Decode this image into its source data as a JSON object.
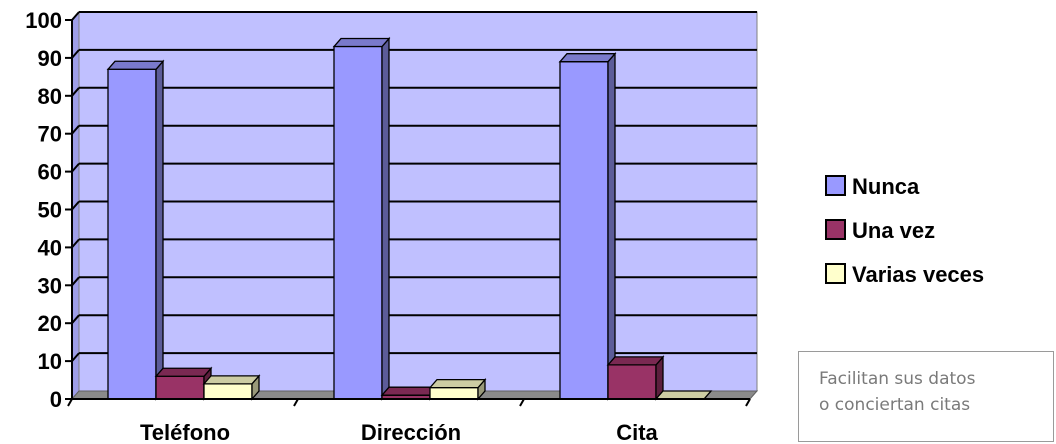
{
  "chart_data": {
    "type": "bar",
    "categories": [
      "Teléfono",
      "Dirección",
      "Cita"
    ],
    "series": [
      {
        "name": "Nunca",
        "values": [
          87,
          93,
          89
        ],
        "color": "#9999ff"
      },
      {
        "name": "Una vez",
        "values": [
          6,
          1,
          9
        ],
        "color": "#993366"
      },
      {
        "name": "Varias veces",
        "values": [
          4,
          3,
          0
        ],
        "color": "#ffffcc"
      }
    ],
    "yticks": [
      0,
      10,
      20,
      30,
      40,
      50,
      60,
      70,
      80,
      90,
      100
    ],
    "ylim": [
      0,
      100
    ],
    "grid": true,
    "three_d": true,
    "plot_background": "#c0c0ff",
    "legend_position": "right"
  },
  "note": {
    "line1": "Facilitan sus datos",
    "line2": "o conciertan citas"
  }
}
